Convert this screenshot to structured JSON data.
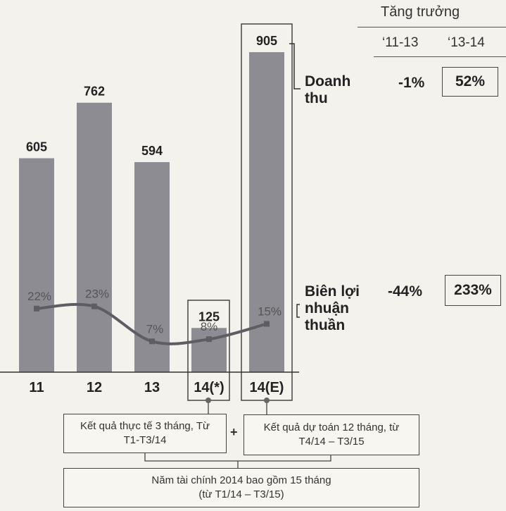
{
  "chart_data": {
    "type": "bar",
    "categories": [
      "11",
      "12",
      "13",
      "14(*)",
      "14(E)"
    ],
    "values": [
      605,
      762,
      594,
      125,
      905
    ],
    "value_labels": [
      "605",
      "762",
      "594",
      "125",
      "905"
    ],
    "ylim": [
      0,
      905
    ],
    "margin_series": {
      "type": "line",
      "values": [
        22,
        23,
        7,
        8,
        15
      ],
      "labels": [
        "22%",
        "23%",
        "7%",
        "8%",
        "15%"
      ],
      "unit": "%"
    },
    "bar_color": "#8c8c92",
    "line_color": "#5d5d63"
  },
  "growth": {
    "header": "Tăng trưởng",
    "periods": [
      "‘11-13",
      "‘13-14"
    ],
    "revenue_label": "Doanh thu",
    "revenue": [
      "-1%",
      "52%"
    ],
    "margin_label": "Biên lợi nhuận thuần",
    "margin": [
      "-44%",
      "233%"
    ]
  },
  "notes": {
    "actual": "Kết quả thực tế 3 tháng, Từ T1-T3/14",
    "forecast": "Kết quả dự toán 12 tháng, từ T4/14 – T3/15",
    "plus": "+",
    "fiscal_line1": "Năm tài chính 2014  bao gồm 15 tháng",
    "fiscal_line2": "(từ T1/14 – T3/15)"
  }
}
